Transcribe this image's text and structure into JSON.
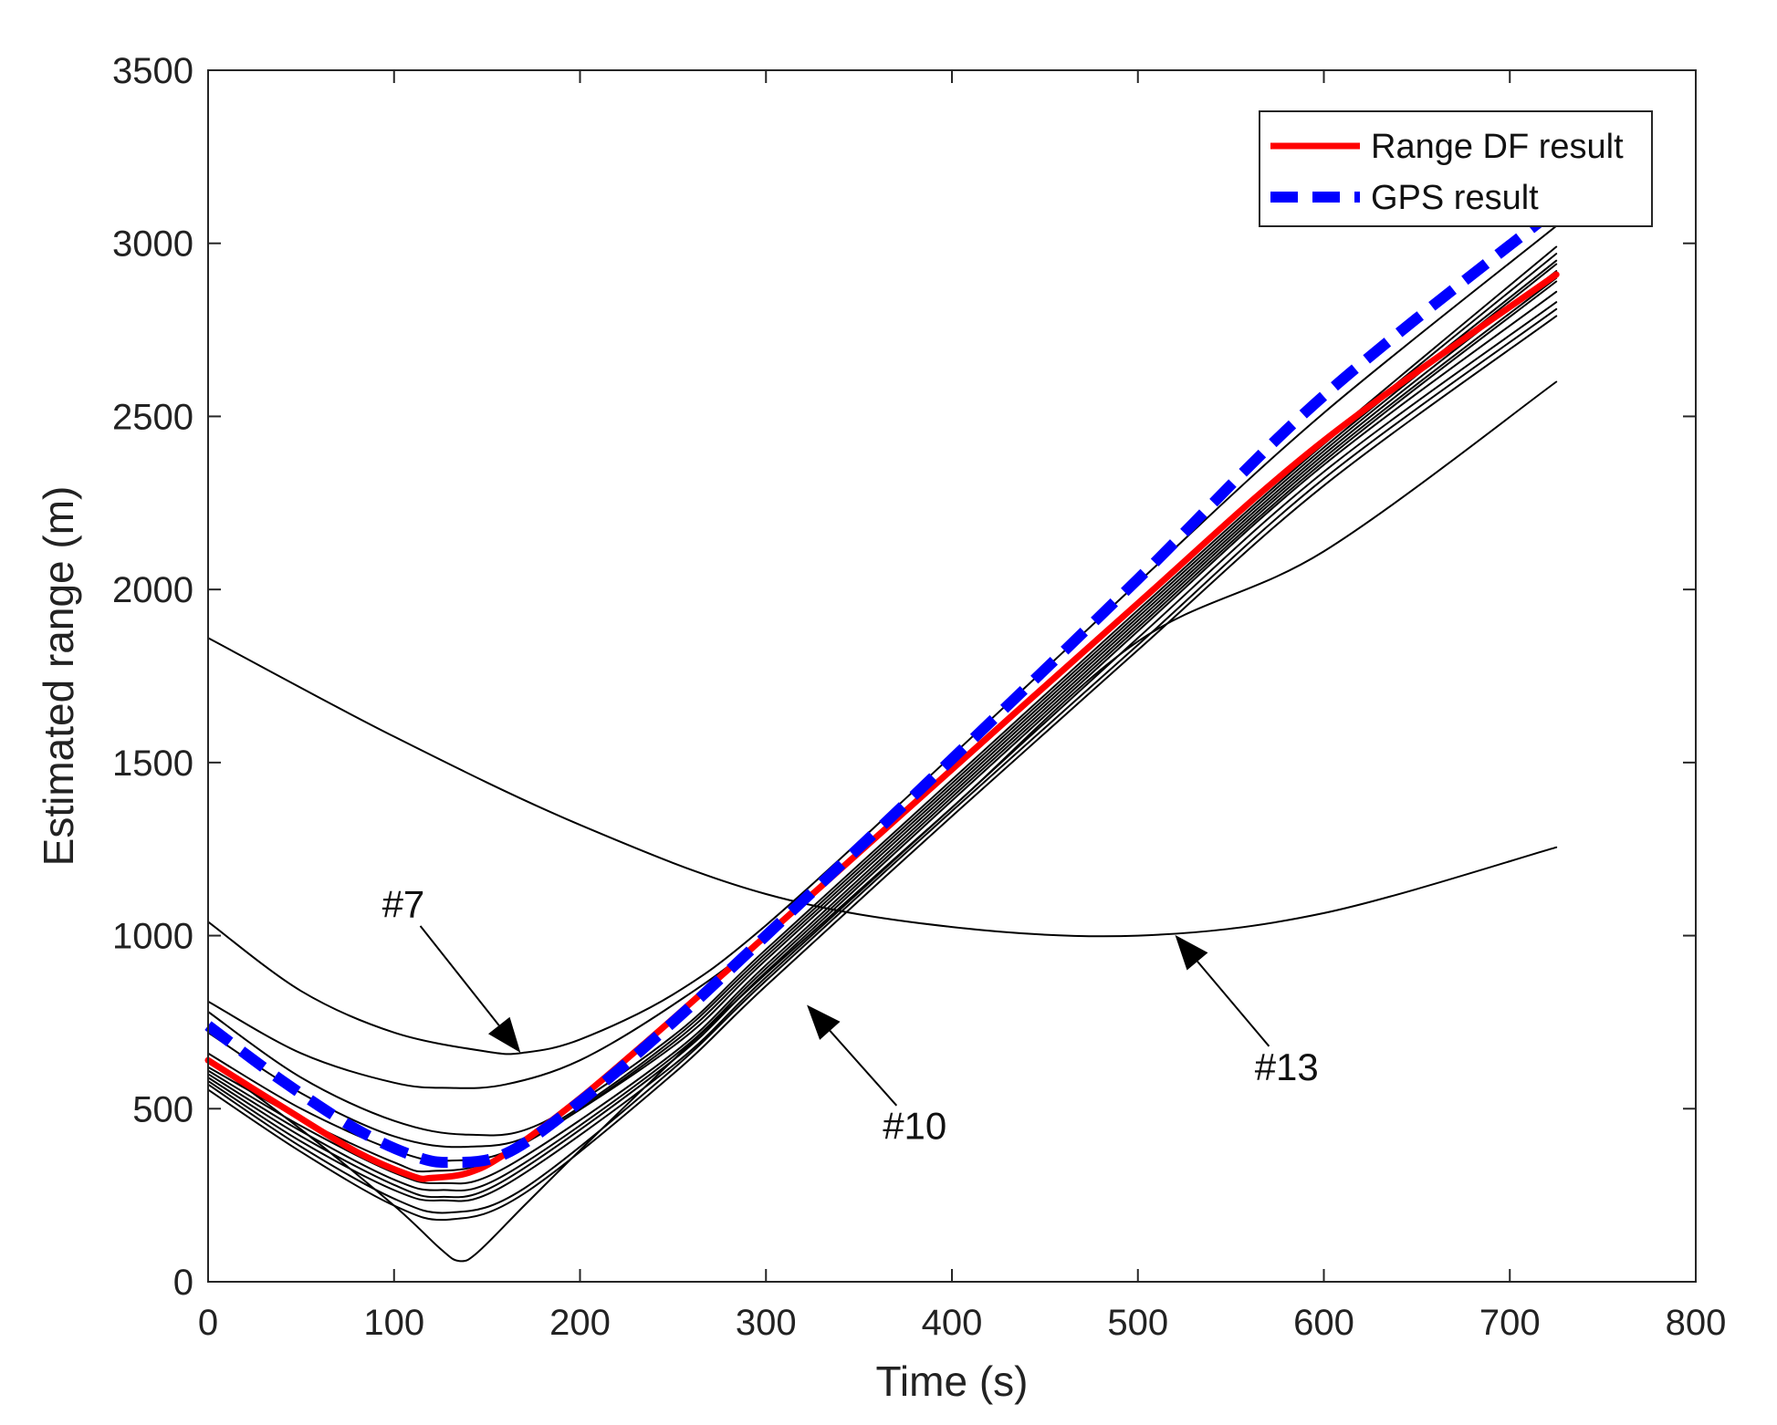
{
  "chart_data": {
    "type": "line",
    "title": "",
    "xlabel": "Time (s)",
    "ylabel": "Estimated range (m)",
    "xlim": [
      0,
      800
    ],
    "ylim": [
      0,
      3500
    ],
    "xticks": [
      0,
      100,
      200,
      300,
      400,
      500,
      600,
      700,
      800
    ],
    "yticks": [
      0,
      500,
      1000,
      1500,
      2000,
      2500,
      3000,
      3500
    ],
    "grid": false,
    "legend_position": "top-right",
    "legend": [
      {
        "label": "Range DF result",
        "color": "#ff0000",
        "style": "solid"
      },
      {
        "label": "GPS result",
        "color": "#0000ff",
        "style": "dashed"
      }
    ],
    "series": [
      {
        "name": "Range DF result",
        "color": "#ff0000",
        "style": "solid",
        "width": 7,
        "x": [
          0,
          40,
          80,
          110,
          120,
          140,
          160,
          200,
          250,
          300,
          400,
          500,
          600,
          725
        ],
        "y": [
          640,
          505,
          375,
          305,
          300,
          315,
          370,
          530,
          760,
          1000,
          1480,
          1960,
          2430,
          2910
        ]
      },
      {
        "name": "GPS result",
        "color": "#0000ff",
        "style": "dashed",
        "width": 12,
        "x": [
          0,
          40,
          80,
          110,
          130,
          160,
          200,
          250,
          300,
          400,
          500,
          600,
          725
        ],
        "y": [
          740,
          580,
          440,
          365,
          345,
          370,
          520,
          750,
          1000,
          1510,
          2030,
          2560,
          3100
        ]
      },
      {
        "color": "#000000",
        "style": "solid",
        "width": 2,
        "x": [
          0,
          100,
          200,
          300,
          400,
          500,
          600,
          725
        ],
        "y": [
          1860,
          1575,
          1320,
          1120,
          1025,
          1000,
          1065,
          1255
        ]
      },
      {
        "color": "#000000",
        "style": "solid",
        "width": 2,
        "x": [
          0,
          50,
          100,
          150,
          170,
          200,
          250,
          300,
          400,
          500,
          600,
          725
        ],
        "y": [
          1040,
          840,
          720,
          665,
          662,
          700,
          830,
          1030,
          1520,
          2020,
          2510,
          3050
        ]
      },
      {
        "color": "#000000",
        "style": "solid",
        "width": 2,
        "x": [
          0,
          50,
          100,
          130,
          160,
          200,
          250,
          300,
          400,
          500,
          600,
          725
        ],
        "y": [
          810,
          660,
          575,
          560,
          570,
          640,
          800,
          1000,
          1480,
          1960,
          2430,
          2990
        ]
      },
      {
        "color": "#000000",
        "style": "solid",
        "width": 2,
        "x": [
          0,
          50,
          100,
          140,
          180,
          250,
          300,
          400,
          500,
          600,
          725
        ],
        "y": [
          780,
          590,
          465,
          425,
          460,
          710,
          960,
          1450,
          1940,
          2420,
          2970
        ]
      },
      {
        "color": "#000000",
        "style": "solid",
        "width": 2,
        "x": [
          0,
          50,
          100,
          140,
          180,
          250,
          300,
          400,
          500,
          600,
          725
        ],
        "y": [
          720,
          545,
          420,
          390,
          440,
          700,
          950,
          1440,
          1930,
          2410,
          2950
        ]
      },
      {
        "color": "#000000",
        "style": "solid",
        "width": 2,
        "x": [
          0,
          50,
          100,
          130,
          170,
          250,
          300,
          400,
          500,
          600,
          725
        ],
        "y": [
          660,
          500,
          380,
          350,
          400,
          690,
          940,
          1430,
          1920,
          2400,
          2940
        ]
      },
      {
        "color": "#000000",
        "style": "solid",
        "width": 2,
        "x": [
          0,
          50,
          100,
          120,
          160,
          250,
          300,
          400,
          500,
          600,
          725
        ],
        "y": [
          620,
          470,
          345,
          320,
          370,
          680,
          930,
          1420,
          1910,
          2390,
          2920
        ]
      },
      {
        "color": "#000000",
        "style": "solid",
        "width": 2,
        "x": [
          0,
          50,
          100,
          125,
          160,
          250,
          300,
          400,
          500,
          600,
          725
        ],
        "y": [
          610,
          450,
          315,
          285,
          330,
          660,
          915,
          1410,
          1900,
          2380,
          2900
        ]
      },
      {
        "color": "#000000",
        "style": "solid",
        "width": 2,
        "x": [
          0,
          50,
          100,
          125,
          160,
          250,
          300,
          400,
          500,
          600,
          725
        ],
        "y": [
          600,
          435,
          295,
          265,
          310,
          650,
          905,
          1400,
          1890,
          2370,
          2890
        ]
      },
      {
        "color": "#000000",
        "style": "solid",
        "width": 2,
        "x": [
          0,
          50,
          100,
          125,
          160,
          250,
          300,
          400,
          500,
          600,
          725
        ],
        "y": [
          590,
          420,
          280,
          245,
          295,
          640,
          895,
          1390,
          1880,
          2360,
          2860
        ]
      },
      {
        "color": "#000000",
        "style": "solid",
        "width": 2,
        "x": [
          0,
          50,
          100,
          125,
          160,
          250,
          300,
          400,
          500,
          600,
          725
        ],
        "y": [
          580,
          405,
          265,
          235,
          280,
          625,
          880,
          1370,
          1860,
          2340,
          2830
        ]
      },
      {
        "color": "#000000",
        "style": "solid",
        "width": 2,
        "x": [
          0,
          50,
          100,
          130,
          170,
          250,
          300,
          400,
          500,
          600,
          725
        ],
        "y": [
          570,
          390,
          240,
          200,
          270,
          615,
          870,
          1360,
          1840,
          2320,
          2810
        ]
      },
      {
        "color": "#000000",
        "style": "solid",
        "width": 2,
        "x": [
          0,
          50,
          100,
          130,
          170,
          250,
          300,
          400,
          500,
          600,
          725
        ],
        "y": [
          555,
          375,
          220,
          180,
          255,
          600,
          855,
          1345,
          1825,
          2300,
          2790
        ]
      },
      {
        "color": "#000000",
        "style": "solid",
        "width": 2,
        "x": [
          0,
          50,
          100,
          125,
          135,
          145,
          170,
          200,
          250,
          300,
          400,
          500,
          600,
          725
        ],
        "y": [
          640,
          440,
          220,
          95,
          60,
          85,
          220,
          380,
          640,
          890,
          1370,
          1850,
          2110,
          2600
        ]
      }
    ],
    "annotations": [
      {
        "text": "#7",
        "arrow_to": [
          168,
          662
        ],
        "text_at": [
          105,
          1090
        ]
      },
      {
        "text": "#10",
        "arrow_to": [
          322,
          800
        ],
        "text_at": [
          380,
          450
        ]
      },
      {
        "text": "#13",
        "arrow_to": [
          520,
          1002
        ],
        "text_at": [
          580,
          620
        ]
      }
    ]
  }
}
